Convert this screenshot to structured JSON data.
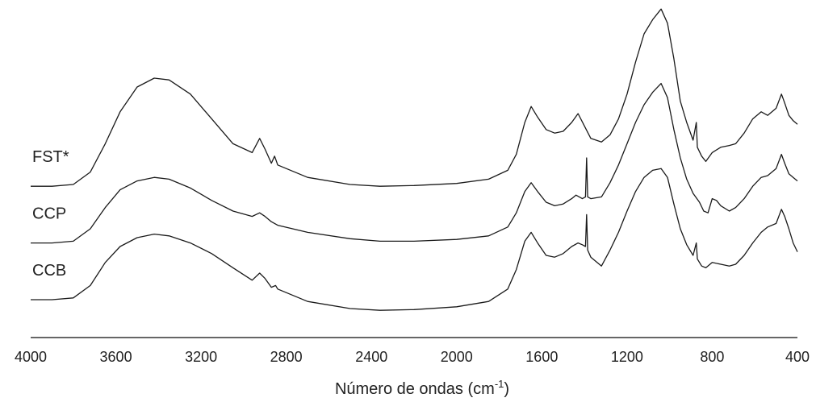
{
  "chart_data": {
    "type": "line",
    "xlabel": "Número de ondas (cm",
    "xlabel_sup": "-1",
    "xlabel_suffix": ")",
    "ylabel": "",
    "xlim": [
      4000,
      400
    ],
    "x_reversed": true,
    "ticks": [
      4000,
      3600,
      3200,
      2800,
      2400,
      2000,
      1600,
      1200,
      800,
      400
    ],
    "tick_labels": [
      "4000",
      "3600",
      "3200",
      "2800",
      "2400",
      "2000",
      "1600",
      "1200",
      "800",
      "400"
    ],
    "y_axis_shown": false,
    "grid": false,
    "series": [
      {
        "name": "FST*",
        "offset": 3.2,
        "points": [
          [
            4000,
            0
          ],
          [
            3900,
            0
          ],
          [
            3800,
            0.05
          ],
          [
            3720,
            0.4
          ],
          [
            3650,
            1.2
          ],
          [
            3580,
            2.1
          ],
          [
            3500,
            2.8
          ],
          [
            3420,
            3.05
          ],
          [
            3350,
            3.0
          ],
          [
            3250,
            2.6
          ],
          [
            3150,
            1.9
          ],
          [
            3050,
            1.2
          ],
          [
            2960,
            0.95
          ],
          [
            2925,
            1.35
          ],
          [
            2900,
            1.05
          ],
          [
            2870,
            0.65
          ],
          [
            2855,
            0.85
          ],
          [
            2840,
            0.6
          ],
          [
            2700,
            0.25
          ],
          [
            2500,
            0.05
          ],
          [
            2360,
            0.0
          ],
          [
            2200,
            0.02
          ],
          [
            2000,
            0.08
          ],
          [
            1850,
            0.2
          ],
          [
            1760,
            0.45
          ],
          [
            1720,
            0.9
          ],
          [
            1680,
            1.8
          ],
          [
            1650,
            2.25
          ],
          [
            1620,
            1.95
          ],
          [
            1580,
            1.6
          ],
          [
            1540,
            1.5
          ],
          [
            1500,
            1.55
          ],
          [
            1460,
            1.8
          ],
          [
            1430,
            2.05
          ],
          [
            1400,
            1.7
          ],
          [
            1370,
            1.35
          ],
          [
            1320,
            1.25
          ],
          [
            1280,
            1.45
          ],
          [
            1240,
            1.9
          ],
          [
            1200,
            2.6
          ],
          [
            1160,
            3.5
          ],
          [
            1120,
            4.3
          ],
          [
            1080,
            4.7
          ],
          [
            1040,
            5.0
          ],
          [
            1010,
            4.6
          ],
          [
            980,
            3.6
          ],
          [
            950,
            2.4
          ],
          [
            920,
            1.8
          ],
          [
            890,
            1.3
          ],
          [
            875,
            1.8
          ],
          [
            870,
            1.1
          ],
          [
            850,
            0.85
          ],
          [
            830,
            0.7
          ],
          [
            800,
            0.95
          ],
          [
            760,
            1.1
          ],
          [
            720,
            1.15
          ],
          [
            690,
            1.2
          ],
          [
            650,
            1.5
          ],
          [
            610,
            1.9
          ],
          [
            570,
            2.1
          ],
          [
            540,
            2.0
          ],
          [
            500,
            2.2
          ],
          [
            475,
            2.6
          ],
          [
            460,
            2.35
          ],
          [
            440,
            2.0
          ],
          [
            420,
            1.85
          ],
          [
            400,
            1.75
          ]
        ]
      },
      {
        "name": "CCP",
        "offset": 1.6,
        "points": [
          [
            4000,
            0
          ],
          [
            3900,
            0
          ],
          [
            3800,
            0.05
          ],
          [
            3720,
            0.4
          ],
          [
            3650,
            1.0
          ],
          [
            3580,
            1.5
          ],
          [
            3500,
            1.75
          ],
          [
            3420,
            1.85
          ],
          [
            3350,
            1.8
          ],
          [
            3250,
            1.55
          ],
          [
            3150,
            1.2
          ],
          [
            3050,
            0.9
          ],
          [
            2960,
            0.75
          ],
          [
            2925,
            0.85
          ],
          [
            2900,
            0.75
          ],
          [
            2870,
            0.6
          ],
          [
            2840,
            0.5
          ],
          [
            2700,
            0.3
          ],
          [
            2500,
            0.12
          ],
          [
            2360,
            0.05
          ],
          [
            2200,
            0.05
          ],
          [
            2000,
            0.1
          ],
          [
            1850,
            0.2
          ],
          [
            1760,
            0.45
          ],
          [
            1720,
            0.85
          ],
          [
            1680,
            1.45
          ],
          [
            1650,
            1.7
          ],
          [
            1620,
            1.45
          ],
          [
            1580,
            1.15
          ],
          [
            1540,
            1.05
          ],
          [
            1500,
            1.1
          ],
          [
            1460,
            1.25
          ],
          [
            1440,
            1.35
          ],
          [
            1410,
            1.25
          ],
          [
            1395,
            1.3
          ],
          [
            1390,
            2.4
          ],
          [
            1385,
            1.3
          ],
          [
            1370,
            1.25
          ],
          [
            1320,
            1.3
          ],
          [
            1280,
            1.7
          ],
          [
            1240,
            2.2
          ],
          [
            1200,
            2.8
          ],
          [
            1160,
            3.4
          ],
          [
            1120,
            3.9
          ],
          [
            1080,
            4.25
          ],
          [
            1040,
            4.5
          ],
          [
            1010,
            4.1
          ],
          [
            980,
            3.2
          ],
          [
            950,
            2.4
          ],
          [
            920,
            1.8
          ],
          [
            890,
            1.4
          ],
          [
            860,
            1.15
          ],
          [
            840,
            0.9
          ],
          [
            820,
            0.85
          ],
          [
            800,
            1.25
          ],
          [
            780,
            1.2
          ],
          [
            760,
            1.05
          ],
          [
            720,
            0.9
          ],
          [
            690,
            1.0
          ],
          [
            650,
            1.25
          ],
          [
            610,
            1.6
          ],
          [
            570,
            1.85
          ],
          [
            540,
            1.9
          ],
          [
            500,
            2.1
          ],
          [
            475,
            2.5
          ],
          [
            460,
            2.25
          ],
          [
            440,
            1.95
          ],
          [
            420,
            1.85
          ],
          [
            400,
            1.75
          ]
        ]
      },
      {
        "name": "CCB",
        "offset": 0,
        "points": [
          [
            4000,
            0
          ],
          [
            3900,
            0
          ],
          [
            3800,
            0.05
          ],
          [
            3720,
            0.4
          ],
          [
            3650,
            1.05
          ],
          [
            3580,
            1.5
          ],
          [
            3500,
            1.75
          ],
          [
            3420,
            1.85
          ],
          [
            3350,
            1.8
          ],
          [
            3250,
            1.6
          ],
          [
            3150,
            1.3
          ],
          [
            3050,
            0.9
          ],
          [
            2960,
            0.55
          ],
          [
            2925,
            0.75
          ],
          [
            2900,
            0.6
          ],
          [
            2870,
            0.35
          ],
          [
            2850,
            0.4
          ],
          [
            2840,
            0.3
          ],
          [
            2700,
            -0.05
          ],
          [
            2500,
            -0.25
          ],
          [
            2360,
            -0.3
          ],
          [
            2200,
            -0.28
          ],
          [
            2000,
            -0.2
          ],
          [
            1850,
            -0.05
          ],
          [
            1760,
            0.3
          ],
          [
            1720,
            0.85
          ],
          [
            1680,
            1.65
          ],
          [
            1650,
            1.9
          ],
          [
            1620,
            1.6
          ],
          [
            1580,
            1.25
          ],
          [
            1540,
            1.2
          ],
          [
            1500,
            1.3
          ],
          [
            1460,
            1.5
          ],
          [
            1430,
            1.6
          ],
          [
            1410,
            1.55
          ],
          [
            1395,
            1.5
          ],
          [
            1390,
            2.4
          ],
          [
            1385,
            1.4
          ],
          [
            1370,
            1.2
          ],
          [
            1320,
            0.95
          ],
          [
            1280,
            1.4
          ],
          [
            1240,
            1.9
          ],
          [
            1200,
            2.5
          ],
          [
            1160,
            3.05
          ],
          [
            1120,
            3.45
          ],
          [
            1080,
            3.65
          ],
          [
            1040,
            3.7
          ],
          [
            1010,
            3.45
          ],
          [
            980,
            2.7
          ],
          [
            950,
            2.0
          ],
          [
            920,
            1.55
          ],
          [
            890,
            1.25
          ],
          [
            875,
            1.6
          ],
          [
            870,
            1.15
          ],
          [
            850,
            0.95
          ],
          [
            830,
            0.9
          ],
          [
            800,
            1.05
          ],
          [
            760,
            1.0
          ],
          [
            720,
            0.95
          ],
          [
            690,
            1.0
          ],
          [
            650,
            1.25
          ],
          [
            610,
            1.6
          ],
          [
            570,
            1.9
          ],
          [
            540,
            2.05
          ],
          [
            500,
            2.15
          ],
          [
            475,
            2.55
          ],
          [
            460,
            2.35
          ],
          [
            440,
            2.0
          ],
          [
            420,
            1.6
          ],
          [
            400,
            1.35
          ]
        ]
      }
    ]
  }
}
